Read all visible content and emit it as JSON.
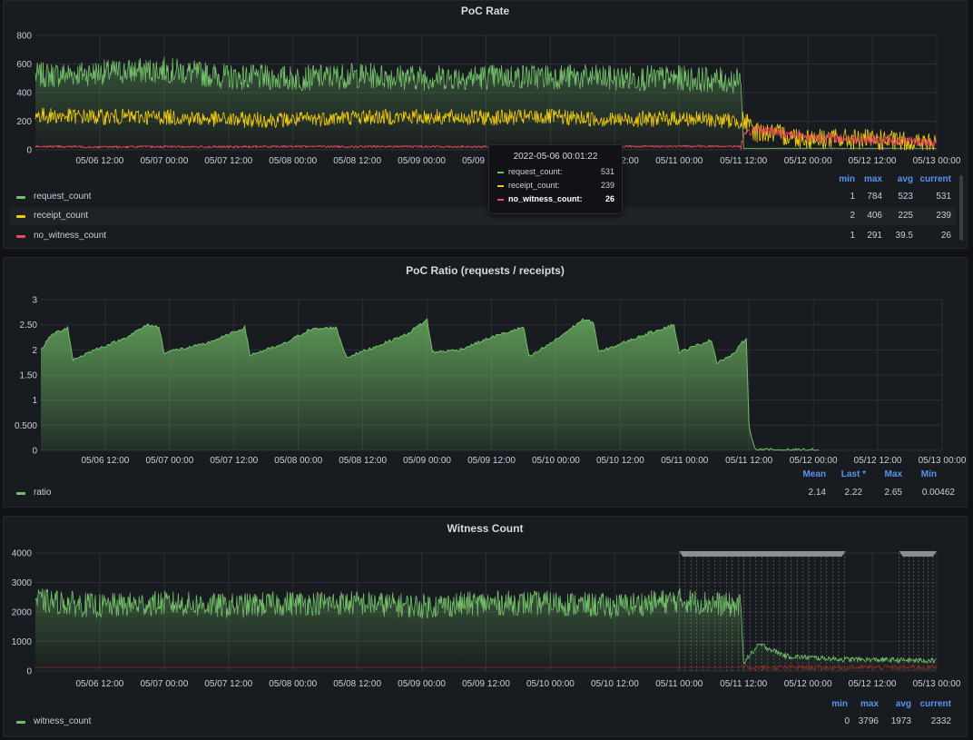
{
  "colors": {
    "green": "#73bf69",
    "yellow": "#f2cc0c",
    "red": "#f2495c",
    "blue": "#5794f2",
    "dark_red": "#8b2b24"
  },
  "panel1": {
    "title": "PoC Rate",
    "legend_headers": [
      "min",
      "max",
      "avg",
      "current"
    ],
    "legend": [
      {
        "name": "request_count",
        "color": "#73bf69",
        "values": [
          "1",
          "784",
          "523",
          "531"
        ]
      },
      {
        "name": "receipt_count",
        "color": "#f2cc0c",
        "values": [
          "2",
          "406",
          "225",
          "239"
        ]
      },
      {
        "name": "no_witness_count",
        "color": "#f2495c",
        "values": [
          "1",
          "291",
          "39.5",
          "26"
        ]
      }
    ],
    "tooltip": {
      "time": "2022-05-06 00:01:22",
      "rows": [
        {
          "name": "request_count:",
          "value": "531",
          "color": "#73bf69"
        },
        {
          "name": "receipt_count:",
          "value": "239",
          "color": "#f2cc0c"
        },
        {
          "name": "no_witness_count:",
          "value": "26",
          "color": "#f2495c"
        }
      ]
    }
  },
  "panel2": {
    "title": "PoC Ratio (requests / receipts)",
    "legend_headers": [
      "Mean",
      "Last *",
      "Max",
      "Min"
    ],
    "legend": [
      {
        "name": "ratio",
        "color": "#73bf69",
        "values": [
          "2.14",
          "2.22",
          "2.65",
          "0.00462"
        ]
      }
    ]
  },
  "panel3": {
    "title": "Witness Count",
    "legend_headers": [
      "min",
      "max",
      "avg",
      "current"
    ],
    "legend": [
      {
        "name": "witness_count",
        "color": "#73bf69",
        "values": [
          "0",
          "3796",
          "1973",
          "2332"
        ]
      }
    ]
  },
  "chart_data": [
    {
      "type": "line",
      "title": "PoC Rate",
      "x_ticks": [
        "05/06 12:00",
        "05/07 00:00",
        "05/07 12:00",
        "05/08 00:00",
        "05/08 12:00",
        "05/09 00:00",
        "05/09 12:00",
        "05/10 00:00",
        "05/10 12:00",
        "05/11 00:00",
        "05/11 12:00",
        "05/12 00:00",
        "05/12 12:00",
        "05/13 00:00"
      ],
      "y_ticks": [
        "0",
        "200",
        "400",
        "600",
        "800"
      ],
      "ylim": [
        0,
        800
      ],
      "x_range_hours": [
        0,
        168
      ],
      "legend_placement": "bottom",
      "grid": true,
      "series": [
        {
          "name": "request_count",
          "color": "#73bf69",
          "summary": {
            "min": 1,
            "max": 784,
            "avg": 523,
            "current": 531
          },
          "points": [
            [
              0,
              520
            ],
            [
              12,
              540
            ],
            [
              24,
              560
            ],
            [
              36,
              510
            ],
            [
              48,
              500
            ],
            [
              60,
              520
            ],
            [
              72,
              505
            ],
            [
              84,
              510
            ],
            [
              96,
              515
            ],
            [
              108,
              500
            ],
            [
              120,
              500
            ],
            [
              131.5,
              480
            ],
            [
              132,
              10
            ],
            [
              144,
              10
            ],
            [
              168,
              10
            ]
          ]
        },
        {
          "name": "receipt_count",
          "color": "#f2cc0c",
          "summary": {
            "min": 2,
            "max": 406,
            "avg": 225,
            "current": 239
          },
          "points": [
            [
              0,
              240
            ],
            [
              12,
              230
            ],
            [
              24,
              230
            ],
            [
              36,
              210
            ],
            [
              48,
              210
            ],
            [
              60,
              230
            ],
            [
              72,
              230
            ],
            [
              84,
              225
            ],
            [
              96,
              230
            ],
            [
              108,
              210
            ],
            [
              120,
              220
            ],
            [
              131.5,
              200
            ],
            [
              132,
              200
            ],
            [
              134,
              130
            ],
            [
              144,
              80
            ],
            [
              156,
              70
            ],
            [
              168,
              40
            ]
          ]
        },
        {
          "name": "no_witness_count",
          "color": "#f2495c",
          "summary": {
            "min": 1,
            "max": 291,
            "avg": 39.5,
            "current": 26
          },
          "points": [
            [
              0,
              25
            ],
            [
              12,
              20
            ],
            [
              24,
              22
            ],
            [
              36,
              20
            ],
            [
              48,
              25
            ],
            [
              60,
              22
            ],
            [
              72,
              24
            ],
            [
              84,
              20
            ],
            [
              96,
              22
            ],
            [
              108,
              24
            ],
            [
              120,
              25
            ],
            [
              131.5,
              25
            ],
            [
              132,
              80
            ],
            [
              134,
              150
            ],
            [
              144,
              90
            ],
            [
              156,
              70
            ],
            [
              168,
              50
            ]
          ]
        }
      ]
    },
    {
      "type": "area",
      "title": "PoC Ratio (requests / receipts)",
      "x_ticks": [
        "05/06 12:00",
        "05/07 00:00",
        "05/07 12:00",
        "05/08 00:00",
        "05/08 12:00",
        "05/09 00:00",
        "05/09 12:00",
        "05/10 00:00",
        "05/10 12:00",
        "05/11 00:00",
        "05/11 12:00",
        "05/12 00:00",
        "05/12 12:00",
        "05/13 00:00"
      ],
      "y_ticks": [
        "0",
        "0.500",
        "1",
        "1.50",
        "2",
        "2.50",
        "3"
      ],
      "ylim": [
        0,
        3
      ],
      "x_range_hours": [
        0,
        168
      ],
      "legend_placement": "bottom",
      "grid": true,
      "series": [
        {
          "name": "ratio",
          "color": "#73bf69",
          "summary": {
            "mean": 2.14,
            "last": 2.22,
            "max": 2.65,
            "min": 0.00462
          },
          "points": [
            [
              0,
              2.0
            ],
            [
              2,
              2.3
            ],
            [
              5,
              2.45
            ],
            [
              6,
              1.8
            ],
            [
              10,
              2.0
            ],
            [
              15,
              2.2
            ],
            [
              20,
              2.5
            ],
            [
              22,
              2.45
            ],
            [
              23,
              1.95
            ],
            [
              30,
              2.1
            ],
            [
              35,
              2.3
            ],
            [
              38,
              2.45
            ],
            [
              39,
              1.9
            ],
            [
              45,
              2.1
            ],
            [
              50,
              2.4
            ],
            [
              55,
              2.45
            ],
            [
              57,
              1.85
            ],
            [
              62,
              2.05
            ],
            [
              68,
              2.3
            ],
            [
              72,
              2.6
            ],
            [
              73,
              1.95
            ],
            [
              78,
              2.0
            ],
            [
              84,
              2.25
            ],
            [
              90,
              2.45
            ],
            [
              91,
              1.85
            ],
            [
              96,
              2.2
            ],
            [
              101,
              2.6
            ],
            [
              103,
              2.55
            ],
            [
              104,
              1.95
            ],
            [
              110,
              2.2
            ],
            [
              115,
              2.4
            ],
            [
              118,
              2.5
            ],
            [
              119,
              1.95
            ],
            [
              125,
              2.2
            ],
            [
              126,
              1.75
            ],
            [
              129,
              1.9
            ],
            [
              131.5,
              2.25
            ],
            [
              132,
              0.5
            ],
            [
              133,
              0.04
            ],
            [
              135,
              0.01
            ],
            [
              145,
              0.01
            ]
          ]
        }
      ]
    },
    {
      "type": "line",
      "title": "Witness Count",
      "x_ticks": [
        "05/06 12:00",
        "05/07 00:00",
        "05/07 12:00",
        "05/08 00:00",
        "05/08 12:00",
        "05/09 00:00",
        "05/09 12:00",
        "05/10 00:00",
        "05/10 12:00",
        "05/11 00:00",
        "05/11 12:00",
        "05/12 00:00",
        "05/12 12:00",
        "05/13 00:00"
      ],
      "y_ticks": [
        "0",
        "1000",
        "2000",
        "3000",
        "4000"
      ],
      "ylim": [
        0,
        4000
      ],
      "x_range_hours": [
        0,
        168
      ],
      "legend_placement": "bottom",
      "grid": true,
      "series": [
        {
          "name": "witness_count",
          "color": "#73bf69",
          "summary": {
            "min": 0,
            "max": 3796,
            "avg": 1973,
            "current": 2332
          },
          "points": [
            [
              0,
              2400
            ],
            [
              12,
              2200
            ],
            [
              24,
              2300
            ],
            [
              36,
              2200
            ],
            [
              48,
              2300
            ],
            [
              60,
              2300
            ],
            [
              72,
              2200
            ],
            [
              84,
              2300
            ],
            [
              96,
              2300
            ],
            [
              108,
              2200
            ],
            [
              120,
              2400
            ],
            [
              131.5,
              2200
            ],
            [
              132,
              300
            ],
            [
              135,
              900
            ],
            [
              140,
              500
            ],
            [
              150,
              400
            ],
            [
              168,
              350
            ]
          ]
        },
        {
          "name": "",
          "color": "#8b2b24",
          "points": [
            [
              0,
              120
            ],
            [
              168,
              120
            ]
          ]
        }
      ]
    }
  ]
}
